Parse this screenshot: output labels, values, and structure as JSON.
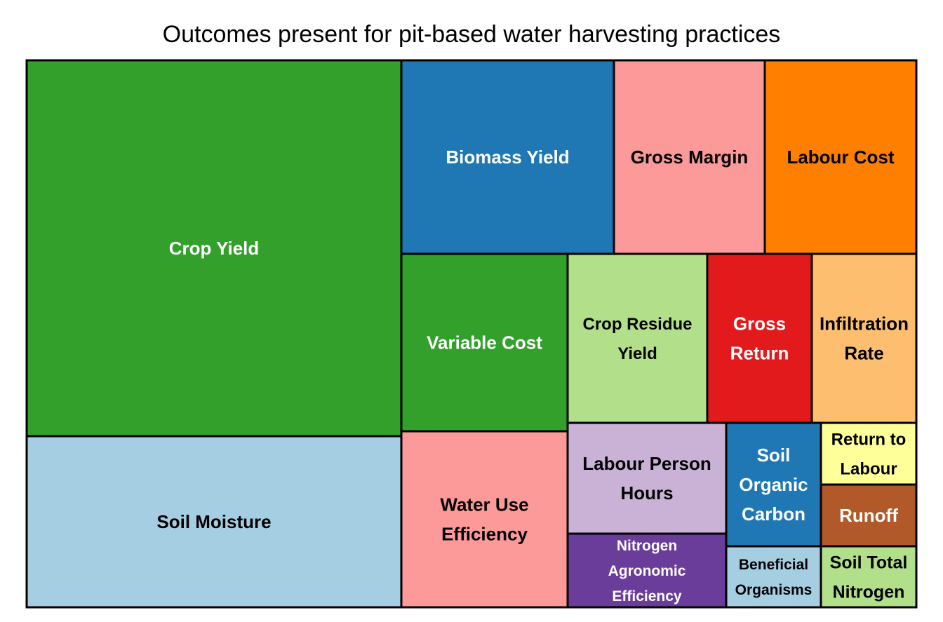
{
  "chart_data": {
    "type": "treemap",
    "title": "Outcomes present for pit-based water harvesting practices",
    "tiles": [
      {
        "label": [
          "Crop Yield"
        ],
        "color": "#33a02c",
        "text_color": "#ffffff"
      },
      {
        "label": [
          "Soil Moisture"
        ],
        "color": "#a6cee3",
        "text_color": "#000000"
      },
      {
        "label": [
          "Biomass Yield"
        ],
        "color": "#1f78b4",
        "text_color": "#ffffff"
      },
      {
        "label": [
          "Gross Margin"
        ],
        "color": "#fb9a99",
        "text_color": "#000000"
      },
      {
        "label": [
          "Labour Cost"
        ],
        "color": "#ff7f00",
        "text_color": "#000000"
      },
      {
        "label": [
          "Variable Cost"
        ],
        "color": "#33a02c",
        "text_color": "#ffffff"
      },
      {
        "label": [
          "Crop Residue",
          "Yield"
        ],
        "color": "#b2df8a",
        "text_color": "#000000"
      },
      {
        "label": [
          "Gross",
          "Return"
        ],
        "color": "#e31a1c",
        "text_color": "#ffffff"
      },
      {
        "label": [
          "Infiltration",
          "Rate"
        ],
        "color": "#fdbf6f",
        "text_color": "#000000"
      },
      {
        "label": [
          "Water Use",
          "Efficiency"
        ],
        "color": "#fb9a99",
        "text_color": "#000000"
      },
      {
        "label": [
          "Labour Person",
          "Hours"
        ],
        "color": "#cab2d6",
        "text_color": "#000000"
      },
      {
        "label": [
          "Nitrogen",
          "Agronomic",
          "Efficiency"
        ],
        "color": "#6a3d9a",
        "text_color": "#ffffff"
      },
      {
        "label": [
          "Soil",
          "Organic",
          "Carbon"
        ],
        "color": "#1f78b4",
        "text_color": "#ffffff"
      },
      {
        "label": [
          "Beneficial",
          "Organisms"
        ],
        "color": "#a6cee3",
        "text_color": "#000000"
      },
      {
        "label": [
          "Return to",
          "Labour"
        ],
        "color": "#ffff99",
        "text_color": "#000000"
      },
      {
        "label": [
          "Runoff"
        ],
        "color": "#b15928",
        "text_color": "#ffffff"
      },
      {
        "label": [
          "Soil Total",
          "Nitrogen"
        ],
        "color": "#b2df8a",
        "text_color": "#000000"
      }
    ]
  }
}
